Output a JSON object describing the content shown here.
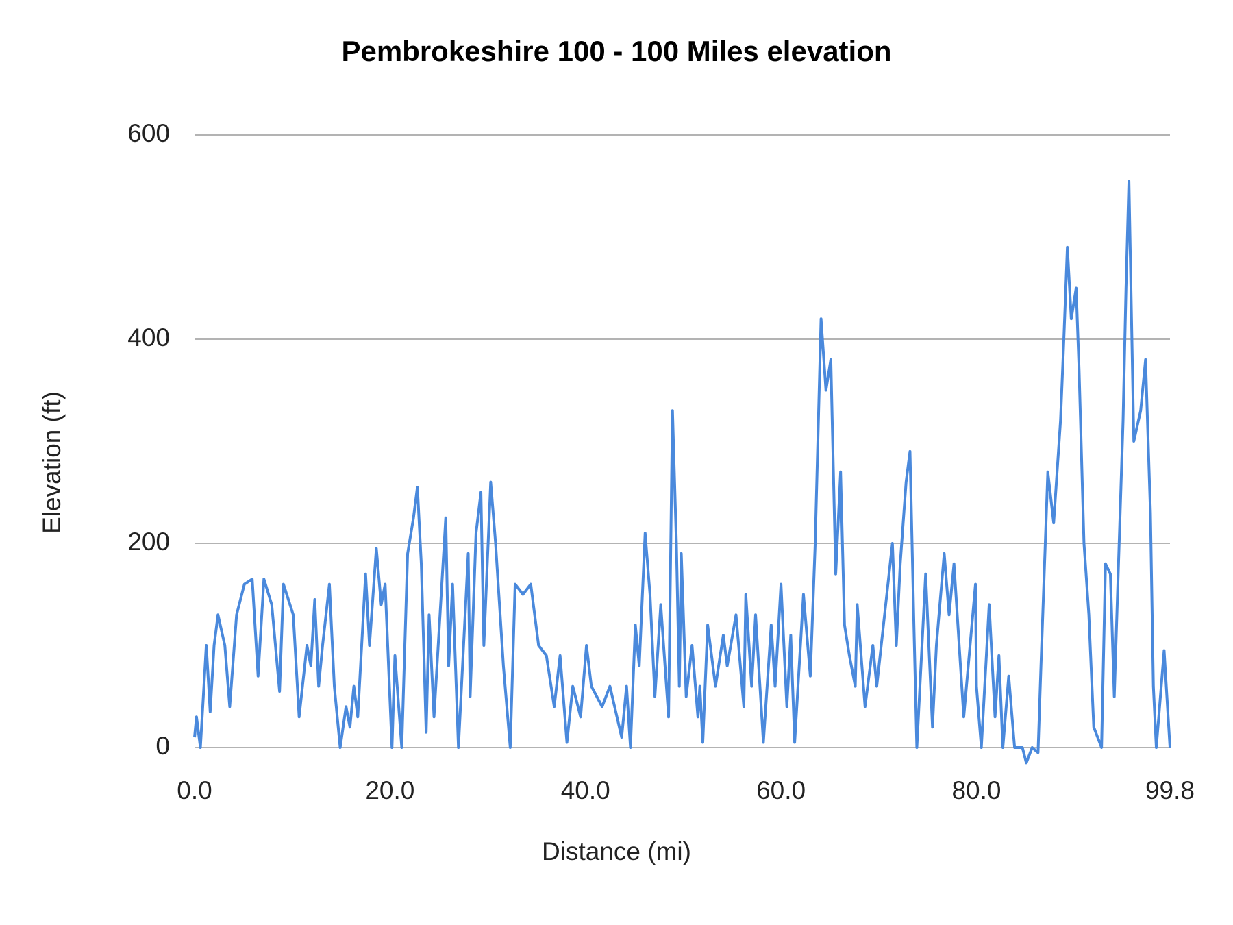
{
  "chart_data": {
    "type": "line",
    "title": "Pembrokeshire 100 - 100 Miles elevation",
    "x_label": "Distance (mi)",
    "y_label": "Elevation (ft)",
    "color": "#4a89dc",
    "grid": true,
    "xlim": [
      0,
      99.8
    ],
    "ylim": [
      0,
      600
    ],
    "xticks": [
      {
        "value": 0,
        "label": "0.0"
      },
      {
        "value": 20,
        "label": "20.0"
      },
      {
        "value": 40,
        "label": "40.0"
      },
      {
        "value": 60,
        "label": "60.0"
      },
      {
        "value": 80,
        "label": "80.0"
      },
      99.8
    ],
    "yticks": [
      0,
      200,
      400,
      600
    ],
    "x": [
      0,
      0.2,
      0.6,
      1.2,
      1.6,
      2.0,
      2.4,
      3.1,
      3.6,
      4.3,
      5.1,
      5.9,
      6.5,
      7.1,
      7.9,
      8.7,
      9.1,
      10.1,
      10.7,
      11.5,
      11.9,
      12.3,
      12.7,
      13.1,
      13.8,
      14.3,
      14.9,
      15.5,
      15.9,
      16.3,
      16.7,
      17.5,
      17.9,
      18.6,
      19.1,
      19.5,
      20.2,
      20.5,
      21.2,
      21.8,
      22.4,
      22.8,
      23.2,
      23.7,
      24.0,
      24.5,
      25.7,
      26.0,
      26.4,
      27.0,
      28.0,
      28.2,
      28.8,
      29.3,
      29.6,
      30.3,
      30.8,
      31.6,
      32.3,
      32.8,
      33.6,
      34.4,
      35.2,
      36.0,
      36.8,
      37.4,
      38.1,
      38.7,
      39.5,
      40.1,
      40.6,
      41.7,
      42.5,
      43.7,
      44.2,
      44.6,
      45.1,
      45.5,
      46.1,
      46.6,
      47.1,
      47.7,
      48.5,
      48.9,
      49.3,
      49.6,
      49.8,
      50.3,
      50.9,
      51.5,
      51.7,
      52.0,
      52.5,
      53.3,
      54.1,
      54.5,
      55.4,
      56.2,
      56.4,
      57.0,
      57.4,
      58.2,
      59.0,
      59.4,
      60.0,
      60.6,
      61.0,
      61.4,
      62.3,
      63.0,
      63.5,
      64.1,
      64.6,
      65.1,
      65.6,
      66.1,
      66.5,
      67.0,
      67.6,
      67.8,
      68.6,
      69.4,
      69.8,
      71.4,
      71.8,
      72.2,
      72.8,
      73.2,
      73.6,
      73.9,
      74.8,
      75.5,
      75.9,
      76.7,
      77.2,
      77.7,
      78.7,
      79.9,
      80.0,
      80.5,
      81.3,
      81.9,
      82.3,
      82.7,
      83.3,
      83.9,
      84.7,
      85.1,
      85.7,
      86.3,
      86.6,
      87.3,
      87.9,
      88.6,
      88.9,
      89.3,
      89.7,
      90.2,
      90.5,
      91.0,
      91.5,
      92.0,
      92.8,
      93.2,
      93.7,
      94.1,
      95.0,
      95.3,
      95.6,
      96.1,
      96.8,
      97.3,
      97.8,
      98.1,
      98.4,
      99.2,
      99.8
    ],
    "values": [
      10,
      30,
      0,
      100,
      35,
      100,
      130,
      100,
      40,
      130,
      160,
      165,
      70,
      165,
      140,
      55,
      160,
      130,
      30,
      100,
      80,
      145,
      60,
      100,
      160,
      60,
      0,
      40,
      20,
      60,
      30,
      170,
      100,
      195,
      140,
      160,
      0,
      90,
      0,
      190,
      225,
      255,
      180,
      15,
      130,
      30,
      225,
      80,
      160,
      0,
      190,
      50,
      210,
      250,
      100,
      260,
      200,
      80,
      0,
      160,
      150,
      160,
      100,
      90,
      40,
      90,
      5,
      60,
      30,
      100,
      60,
      40,
      60,
      10,
      60,
      0,
      120,
      80,
      210,
      150,
      50,
      140,
      30,
      330,
      200,
      60,
      190,
      50,
      100,
      30,
      60,
      5,
      120,
      60,
      110,
      80,
      130,
      40,
      150,
      60,
      130,
      5,
      120,
      60,
      160,
      40,
      110,
      5,
      150,
      70,
      200,
      420,
      350,
      380,
      170,
      270,
      120,
      90,
      60,
      140,
      40,
      100,
      60,
      200,
      100,
      180,
      260,
      290,
      120,
      0,
      170,
      20,
      100,
      190,
      130,
      180,
      30,
      160,
      60,
      0,
      140,
      30,
      90,
      0,
      70,
      0,
      0,
      -15,
      0,
      -5,
      80,
      270,
      220,
      320,
      390,
      490,
      420,
      450,
      370,
      200,
      130,
      20,
      0,
      180,
      170,
      50,
      320,
      450,
      555,
      300,
      330,
      380,
      230,
      60,
      0,
      95,
      0
    ]
  }
}
